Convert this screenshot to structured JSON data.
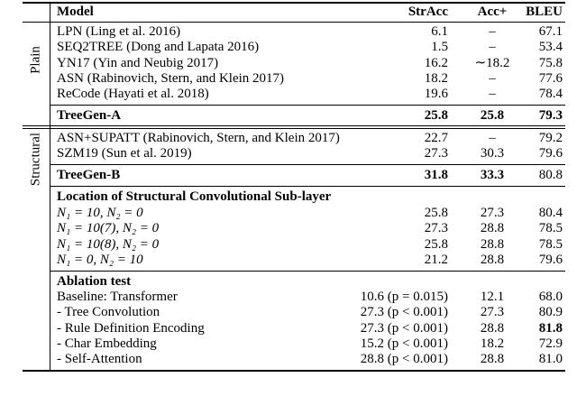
{
  "table": {
    "header": [
      "Model",
      "StrAcc",
      "Acc+",
      "BLEU"
    ],
    "plain": {
      "label": "Plain",
      "rows": [
        [
          "LPN (Ling et al. 2016)",
          "6.1",
          "–",
          "67.1"
        ],
        [
          "SEQ2TREE (Dong and Lapata 2016)",
          "1.5",
          "–",
          "53.4"
        ],
        [
          "YN17 (Yin and Neubig 2017)",
          "16.2",
          "∼18.2",
          "75.8"
        ],
        [
          "ASN (Rabinovich, Stern, and Klein 2017)",
          "18.2",
          "–",
          "77.6"
        ],
        [
          "ReCode (Hayati et al. 2018)",
          "19.6",
          "–",
          "78.4"
        ]
      ]
    },
    "treegen_a": [
      "TreeGen-A",
      "25.8",
      "25.8",
      "79.3"
    ],
    "structural": {
      "label": "Structural",
      "rows": [
        [
          "ASN+SUPATT (Rabinovich, Stern, and Klein 2017)",
          "22.7",
          "–",
          "79.2"
        ],
        [
          "SZM19 (Sun et al. 2019)",
          "27.3",
          "30.3",
          "79.6"
        ]
      ]
    },
    "treegen_b": [
      "TreeGen-B",
      "31.8",
      "33.3",
      "80.8"
    ],
    "location": {
      "title": "Location of Structural Convolutional Sub-layer",
      "rows": [
        [
          "N₁ = 10, N₂ = 0",
          "25.8",
          "27.3",
          "80.4"
        ],
        [
          "N₁ = 10(7), N₂ = 0",
          "27.3",
          "28.8",
          "78.5"
        ],
        [
          "N₁ = 10(8), N₂ = 0",
          "25.8",
          "28.8",
          "78.5"
        ],
        [
          "N₁ = 0, N₂ = 10",
          "21.2",
          "28.8",
          "79.6"
        ]
      ]
    },
    "ablation": {
      "title": "Ablation test",
      "rows": [
        [
          "Baseline: Transformer",
          "10.6 (p = 0.015)",
          "12.1",
          "68.0"
        ],
        [
          "- Tree Convolution",
          "27.3 (p < 0.001)",
          "27.3",
          "80.9"
        ],
        [
          "- Rule Definition Encoding",
          "27.3 (p < 0.001)",
          "28.8",
          "81.8"
        ],
        [
          "- Char Embedding",
          "15.2 (p < 0.001)",
          "18.2",
          "72.9"
        ],
        [
          "- Self-Attention",
          "28.8 (p < 0.001)",
          "28.8",
          "81.0"
        ]
      ]
    }
  }
}
